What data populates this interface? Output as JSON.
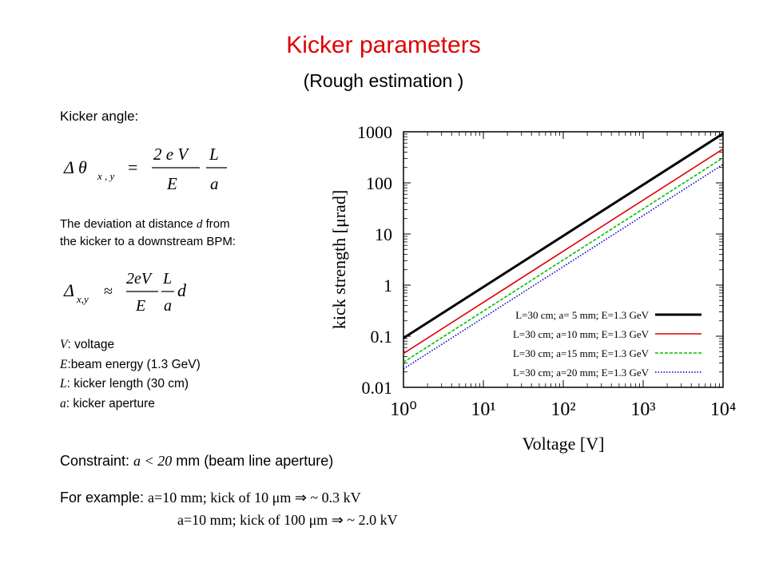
{
  "slide": {
    "title": "Kicker parameters",
    "subtitle": "(Rough estimation )"
  },
  "left": {
    "kicker_angle_label": "Kicker angle:",
    "deviation_pre": "The deviation at distance ",
    "deviation_var": "d",
    "deviation_post": " from",
    "deviation_line2": "the kicker to a downstream BPM:",
    "formula1": {
      "delta_theta": "Δ θ",
      "sub": "x , y",
      "eq": "=",
      "num1": "2 e V",
      "den1": "E",
      "num2": "L",
      "den2": "a"
    },
    "formula2": {
      "delta": "Δ",
      "sub": "x,y",
      "approx": "≈",
      "num1": "2eV",
      "den1": "E",
      "num2": "L",
      "den2": "a",
      "d": "d"
    },
    "defs": [
      {
        "sym": "V",
        "text": ": voltage"
      },
      {
        "sym": "E",
        "text": ":beam energy (1.3 GeV)"
      },
      {
        "sym": "L",
        "text": ": kicker length (30 cm)"
      },
      {
        "sym": "a",
        "text": ": kicker aperture"
      }
    ]
  },
  "bottom": {
    "constraint_pre": "Constraint: ",
    "constraint_expr": "a < 20",
    "constraint_post": " mm (beam line aperture)",
    "example_label": "For example: ",
    "example1": "a=10 mm; kick of 10 μm  ⇒ ~ 0.3 kV",
    "example2": "a=10 mm; kick of 100 μm  ⇒ ~ 2.0 kV"
  },
  "chart_data": {
    "type": "line",
    "xlabel": "Voltage [V]",
    "ylabel": "kick strength [μrad]",
    "xscale": "log",
    "yscale": "log",
    "xlim": [
      1,
      10000
    ],
    "ylim": [
      0.01,
      1000
    ],
    "x_ticks": [
      "10⁰",
      "10¹",
      "10²",
      "10³",
      "10⁴"
    ],
    "y_ticks": [
      "0.01",
      "0.1",
      "1",
      "10",
      "100",
      "1000"
    ],
    "grid": false,
    "legend_position": "bottom-right",
    "series": [
      {
        "name": "L=30 cm; a= 5 mm; E=1.3 GeV",
        "color": "#000000",
        "style": "solid",
        "x": [
          1,
          10000
        ],
        "y": [
          0.092,
          920
        ]
      },
      {
        "name": "L=30 cm; a=10 mm; E=1.3 GeV",
        "color": "#e00000",
        "style": "solid",
        "x": [
          1,
          10000
        ],
        "y": [
          0.046,
          460
        ]
      },
      {
        "name": "L=30 cm; a=15 mm; E=1.3 GeV",
        "color": "#00c000",
        "style": "dashed",
        "x": [
          1,
          10000
        ],
        "y": [
          0.031,
          310
        ]
      },
      {
        "name": "L=30 cm; a=20 mm; E=1.3 GeV",
        "color": "#0000c8",
        "style": "dotted",
        "x": [
          1,
          10000
        ],
        "y": [
          0.023,
          230
        ]
      }
    ]
  }
}
